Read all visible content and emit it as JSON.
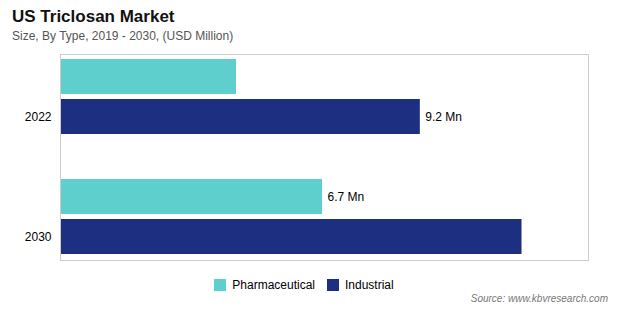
{
  "chart_data": {
    "type": "bar",
    "orientation": "horizontal",
    "title": "US Triclosan Market",
    "subtitle": "Size, By Type, 2019 - 2030, (USD Million)",
    "source": "Source: www.kbvresearch.com",
    "categories": [
      "2022",
      "2030"
    ],
    "series": [
      {
        "name": "Pharmaceutical",
        "color": "#5ecfcc",
        "values": [
          4.5,
          6.7
        ],
        "value_labels": [
          null,
          "6.7 Mn"
        ]
      },
      {
        "name": "Industrial",
        "color": "#1c2f80",
        "values": [
          9.2,
          11.8
        ],
        "value_labels": [
          "9.2 Mn",
          null
        ]
      }
    ],
    "xlim": [
      0,
      13.5
    ],
    "tick_labels": "y",
    "grid": false,
    "legend": "bottom"
  }
}
